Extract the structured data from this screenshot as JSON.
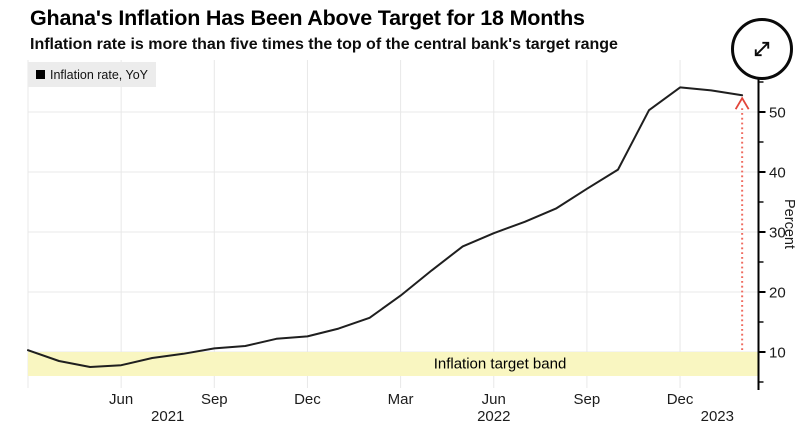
{
  "header": {
    "title": "Ghana's Inflation Has Been Above Target for 18 Months",
    "subtitle": "Inflation rate is more than five times the top of the central bank's target range"
  },
  "legend": {
    "label": "Inflation rate, YoY",
    "swatch_color": "#000000"
  },
  "expand_button": {
    "icon": "expand-diagonal-arrows"
  },
  "chart_data": {
    "type": "line",
    "title": "Ghana's Inflation Has Been Above Target for 18 Months",
    "ylabel": "Percent",
    "xlabel": "",
    "grid": true,
    "legend_position": "top-left",
    "ylim": [
      3.7,
      58.7
    ],
    "categories": [
      "Mar 2021",
      "Apr 2021",
      "May 2021",
      "Jun 2021",
      "Jul 2021",
      "Aug 2021",
      "Sep 2021",
      "Oct 2021",
      "Nov 2021",
      "Dec 2021",
      "Jan 2022",
      "Feb 2022",
      "Mar 2022",
      "Apr 2022",
      "May 2022",
      "Jun 2022",
      "Jul 2022",
      "Aug 2022",
      "Sep 2022",
      "Oct 2022",
      "Nov 2022",
      "Dec 2022",
      "Jan 2023",
      "Feb 2023"
    ],
    "series": [
      {
        "name": "Inflation rate, YoY",
        "color": "#1f1f1f",
        "values": [
          10.3,
          8.5,
          7.5,
          7.8,
          9.0,
          9.7,
          10.6,
          11.0,
          12.2,
          12.6,
          13.9,
          15.7,
          19.4,
          23.6,
          27.6,
          29.8,
          31.7,
          33.9,
          37.2,
          40.4,
          50.3,
          54.1,
          53.6,
          52.8
        ]
      }
    ],
    "yticks_major": [
      10,
      20,
      30,
      40,
      50
    ],
    "yticks_minor": [
      5,
      15,
      25,
      35,
      45,
      55
    ],
    "x_gridlines": [
      0,
      3,
      6,
      9,
      12,
      15,
      18,
      21
    ],
    "x_ticks": [
      {
        "label": "Jun",
        "pos": 3
      },
      {
        "label": "Sep",
        "pos": 6
      },
      {
        "label": "Dec",
        "pos": 9
      },
      {
        "label": "Mar",
        "pos": 12
      },
      {
        "label": "Jun",
        "pos": 15
      },
      {
        "label": "Sep",
        "pos": 18
      },
      {
        "label": "Dec",
        "pos": 21
      }
    ],
    "year_labels": [
      {
        "label": "2021",
        "pos": 4.5
      },
      {
        "label": "2022",
        "pos": 15
      },
      {
        "label": "2023",
        "pos": 22.2
      }
    ],
    "target_band": {
      "label": "Inflation target band",
      "from": 6,
      "to": 10,
      "color": "#f9f6c1"
    },
    "annotation_arrow": {
      "month_pos": 23,
      "from_value": 10,
      "to_value": 52.8,
      "line_color": "#ef6a5f",
      "head_color": "#e2453a"
    },
    "colors": {
      "grid": "#e8e8e8",
      "axis": "#000000",
      "tick_label": "#1a1a1a",
      "x_label": "#1c1c1c"
    }
  }
}
